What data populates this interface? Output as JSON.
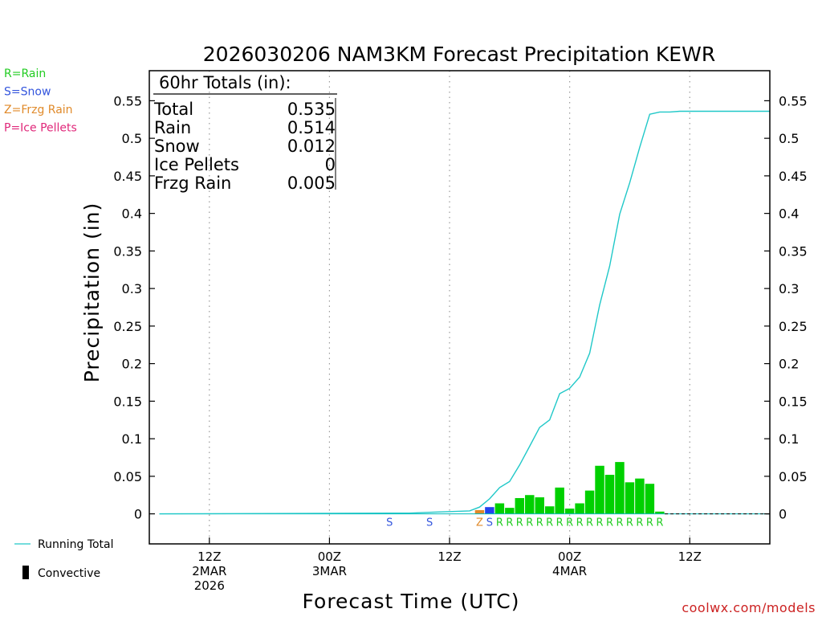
{
  "chart_data": {
    "type": "bar",
    "title": "2026030206 NAM3KM Forecast Precipitation KEWR",
    "xlabel": "Forecast Time (UTC)",
    "ylabel": "Precipitation (in)",
    "ylim": [
      -0.04,
      0.59
    ],
    "yticks": [
      0,
      0.05,
      0.1,
      0.15,
      0.2,
      0.25,
      0.3,
      0.35,
      0.4,
      0.45,
      0.5,
      0.55
    ],
    "ytick_labels": [
      "0",
      "0.05",
      "0.1",
      "0.15",
      "0.2",
      "0.25",
      "0.3",
      "0.35",
      "0.4",
      "0.45",
      "0.5",
      "0.55"
    ],
    "x_range_hours": [
      0,
      62
    ],
    "x_ticks": [
      {
        "hour": 6,
        "lines": [
          "12Z",
          "2MAR",
          "2026"
        ]
      },
      {
        "hour": 18,
        "lines": [
          "00Z",
          "3MAR"
        ]
      },
      {
        "hour": 30,
        "lines": [
          "12Z"
        ]
      },
      {
        "hour": 42,
        "lines": [
          "00Z",
          "4MAR"
        ]
      },
      {
        "hour": 54,
        "lines": [
          "12Z"
        ]
      }
    ],
    "grid": "vertical dotted at major ticks",
    "totals_box": {
      "heading": "60hr Totals (in):",
      "rows": [
        {
          "label": "Total",
          "value": "0.535"
        },
        {
          "label": "Rain",
          "value": "0.514"
        },
        {
          "label": "Snow",
          "value": "0.012"
        },
        {
          "label": "Ice Pellets",
          "value": "0"
        },
        {
          "label": "Frzg Rain",
          "value": "0.005"
        }
      ]
    },
    "precip_type_legend": [
      {
        "text": "R=Rain",
        "color": "#22cc22"
      },
      {
        "text": "S=Snow",
        "color": "#3355dd"
      },
      {
        "text": "Z=Frzg Rain",
        "color": "#e08a2a"
      },
      {
        "text": "P=Ice Pellets",
        "color": "#e0287a"
      }
    ],
    "series_legend": [
      {
        "name": "Running Total",
        "type": "line",
        "color": "#20c8c8"
      },
      {
        "name": "Convective",
        "type": "bar",
        "color": "#000000"
      }
    ],
    "bars": [
      {
        "hour": 33,
        "value": 0.005,
        "type": "Z",
        "color": "#e08a2a"
      },
      {
        "hour": 34,
        "value": 0.009,
        "type": "S",
        "color": "#2244ee"
      },
      {
        "hour": 35,
        "value": 0.014,
        "type": "R",
        "color": "#00d000"
      },
      {
        "hour": 36,
        "value": 0.008,
        "type": "R",
        "color": "#00d000"
      },
      {
        "hour": 37,
        "value": 0.021,
        "type": "R",
        "color": "#00d000"
      },
      {
        "hour": 38,
        "value": 0.025,
        "type": "R",
        "color": "#00d000"
      },
      {
        "hour": 39,
        "value": 0.022,
        "type": "R",
        "color": "#00d000"
      },
      {
        "hour": 40,
        "value": 0.01,
        "type": "R",
        "color": "#00d000"
      },
      {
        "hour": 41,
        "value": 0.035,
        "type": "R",
        "color": "#00d000"
      },
      {
        "hour": 42,
        "value": 0.007,
        "type": "R",
        "color": "#00d000"
      },
      {
        "hour": 43,
        "value": 0.014,
        "type": "R",
        "color": "#00d000"
      },
      {
        "hour": 44,
        "value": 0.031,
        "type": "R",
        "color": "#00d000"
      },
      {
        "hour": 45,
        "value": 0.064,
        "type": "R",
        "color": "#00d000"
      },
      {
        "hour": 46,
        "value": 0.052,
        "type": "R",
        "color": "#00d000"
      },
      {
        "hour": 47,
        "value": 0.069,
        "type": "R",
        "color": "#00d000"
      },
      {
        "hour": 48,
        "value": 0.042,
        "type": "R",
        "color": "#00d000"
      },
      {
        "hour": 49,
        "value": 0.047,
        "type": "R",
        "color": "#00d000"
      },
      {
        "hour": 50,
        "value": 0.04,
        "type": "R",
        "color": "#00d000"
      },
      {
        "hour": 51,
        "value": 0.003,
        "type": "R",
        "color": "#00d000"
      }
    ],
    "type_codes": [
      {
        "hour": 24,
        "code": "S",
        "color": "#3355dd"
      },
      {
        "hour": 28,
        "code": "S",
        "color": "#3355dd"
      },
      {
        "hour": 33,
        "code": "Z",
        "color": "#e08a2a"
      },
      {
        "hour": 34,
        "code": "S",
        "color": "#3355dd"
      },
      {
        "hour": 35,
        "code": "R",
        "color": "#22cc22"
      },
      {
        "hour": 36,
        "code": "R",
        "color": "#22cc22"
      },
      {
        "hour": 37,
        "code": "R",
        "color": "#22cc22"
      },
      {
        "hour": 38,
        "code": "R",
        "color": "#22cc22"
      },
      {
        "hour": 39,
        "code": "R",
        "color": "#22cc22"
      },
      {
        "hour": 40,
        "code": "R",
        "color": "#22cc22"
      },
      {
        "hour": 41,
        "code": "R",
        "color": "#22cc22"
      },
      {
        "hour": 42,
        "code": "R",
        "color": "#22cc22"
      },
      {
        "hour": 43,
        "code": "R",
        "color": "#22cc22"
      },
      {
        "hour": 44,
        "code": "R",
        "color": "#22cc22"
      },
      {
        "hour": 45,
        "code": "R",
        "color": "#22cc22"
      },
      {
        "hour": 46,
        "code": "R",
        "color": "#22cc22"
      },
      {
        "hour": 47,
        "code": "R",
        "color": "#22cc22"
      },
      {
        "hour": 48,
        "code": "R",
        "color": "#22cc22"
      },
      {
        "hour": 49,
        "code": "R",
        "color": "#22cc22"
      },
      {
        "hour": 50,
        "code": "R",
        "color": "#22cc22"
      },
      {
        "hour": 51,
        "code": "R",
        "color": "#22cc22"
      }
    ],
    "running_total": {
      "hours": [
        1,
        24,
        26,
        28,
        30,
        32,
        33,
        34,
        35,
        36,
        37,
        38,
        39,
        40,
        41,
        42,
        43,
        44,
        45,
        46,
        47,
        48,
        49,
        50,
        51,
        52,
        53,
        62
      ],
      "values": [
        0,
        0.001,
        0.001,
        0.002,
        0.003,
        0.004,
        0.009,
        0.02,
        0.035,
        0.043,
        0.065,
        0.09,
        0.115,
        0.125,
        0.16,
        0.167,
        0.182,
        0.214,
        0.278,
        0.33,
        0.399,
        0.441,
        0.488,
        0.532,
        0.535,
        0.535,
        0.536,
        0.536
      ]
    },
    "zero_line_color": "#00bbbb"
  },
  "credit": "coolwx.com/models",
  "credit_color": "#cc2222"
}
